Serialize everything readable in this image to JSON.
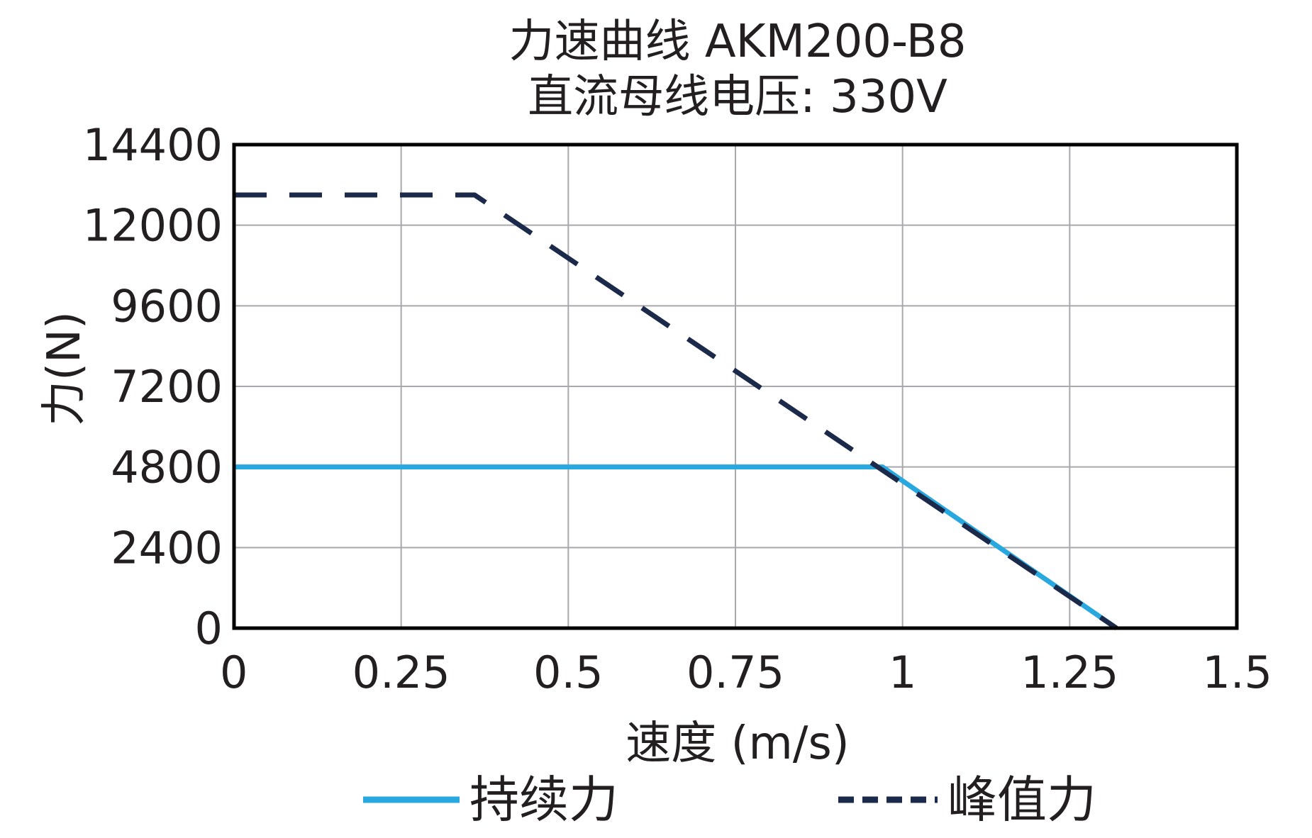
{
  "chart_data": {
    "type": "line",
    "title": "力速曲线 AKM200-B8",
    "subtitle": "直流母线电压: 330V",
    "xlabel": "速度 (m/s)",
    "ylabel": "力(N)",
    "xlim": [
      0,
      1.5
    ],
    "ylim": [
      0,
      14400
    ],
    "x_ticks": [
      0,
      0.25,
      0.5,
      0.75,
      1,
      1.25,
      1.5
    ],
    "x_tick_labels": [
      "0",
      "0.25",
      "0.5",
      "0.75",
      "1",
      "1.25",
      "1.5"
    ],
    "y_ticks": [
      0,
      2400,
      4800,
      7200,
      9600,
      12000,
      14400
    ],
    "y_tick_labels": [
      "0",
      "2400",
      "4800",
      "7200",
      "9600",
      "12000",
      "14400"
    ],
    "grid": true,
    "legend_position": "bottom",
    "series": [
      {
        "name": "持续力",
        "style": "solid",
        "color": "#29a8e0",
        "x": [
          0,
          0.97,
          1.32
        ],
        "y": [
          4800,
          4800,
          0
        ]
      },
      {
        "name": "峰值力",
        "style": "dashed",
        "color": "#1b2a4a",
        "x": [
          0,
          0.36,
          1.32
        ],
        "y": [
          12900,
          12900,
          0
        ]
      }
    ]
  }
}
